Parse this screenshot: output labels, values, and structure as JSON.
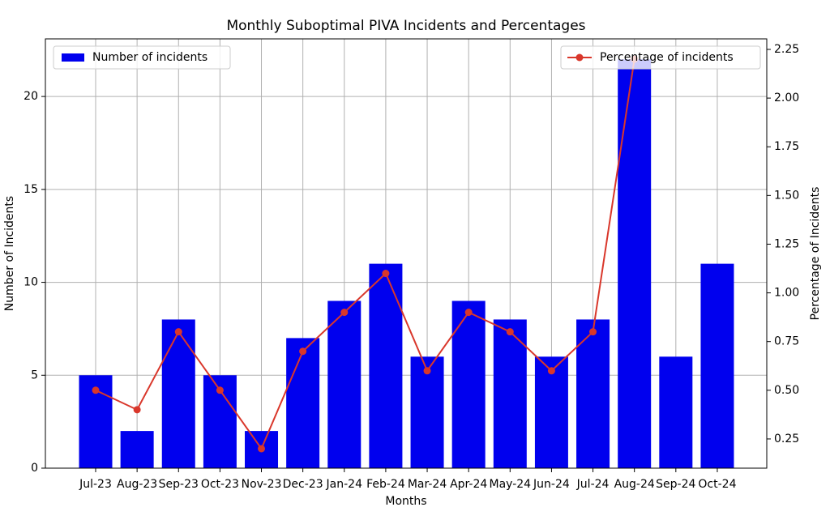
{
  "chart_data": {
    "type": "bar_line",
    "title": "Monthly Suboptimal PIVA Incidents and Percentages",
    "xlabel": "Months",
    "ylabel": "Number of Incidents",
    "y2label": "Percentage of Incidents",
    "categories": [
      "Jul-23",
      "Aug-23",
      "Sep-23",
      "Oct-23",
      "Nov-23",
      "Dec-23",
      "Jan-24",
      "Feb-24",
      "Mar-24",
      "Apr-24",
      "May-24",
      "Jun-24",
      "Jul-24",
      "Aug-24",
      "Sep-24",
      "Oct-24"
    ],
    "series": [
      {
        "name": "Number of incidents",
        "type": "bar",
        "color": "#0000ee",
        "legend": "upper left",
        "values": [
          5,
          2,
          8,
          5,
          2,
          7,
          9,
          11,
          6,
          9,
          8,
          6,
          8,
          22,
          6,
          11
        ]
      },
      {
        "name": "Percentage of incidents",
        "type": "line",
        "axis": "y2",
        "color": "#d9372b",
        "legend": "upper right",
        "values": [
          0.5,
          0.4,
          0.8,
          0.5,
          0.2,
          0.7,
          0.9,
          1.1,
          0.6,
          0.9,
          0.8,
          0.6,
          0.8,
          2.2,
          null,
          null
        ]
      }
    ],
    "ylim": [
      0,
      23.1
    ],
    "yticks": [
      0,
      5,
      10,
      15,
      20
    ],
    "y2lim": [
      0.1,
      2.304
    ],
    "y2ticks": [
      0.25,
      {
        "value": 0.5,
        "label": "0.50"
      },
      0.75,
      {
        "value": 1,
        "label": "1.00"
      },
      1.25,
      {
        "value": 1.5,
        "label": "1.50"
      },
      1.75,
      {
        "value": 2,
        "label": "2.00"
      },
      2.25
    ],
    "grid": true
  }
}
